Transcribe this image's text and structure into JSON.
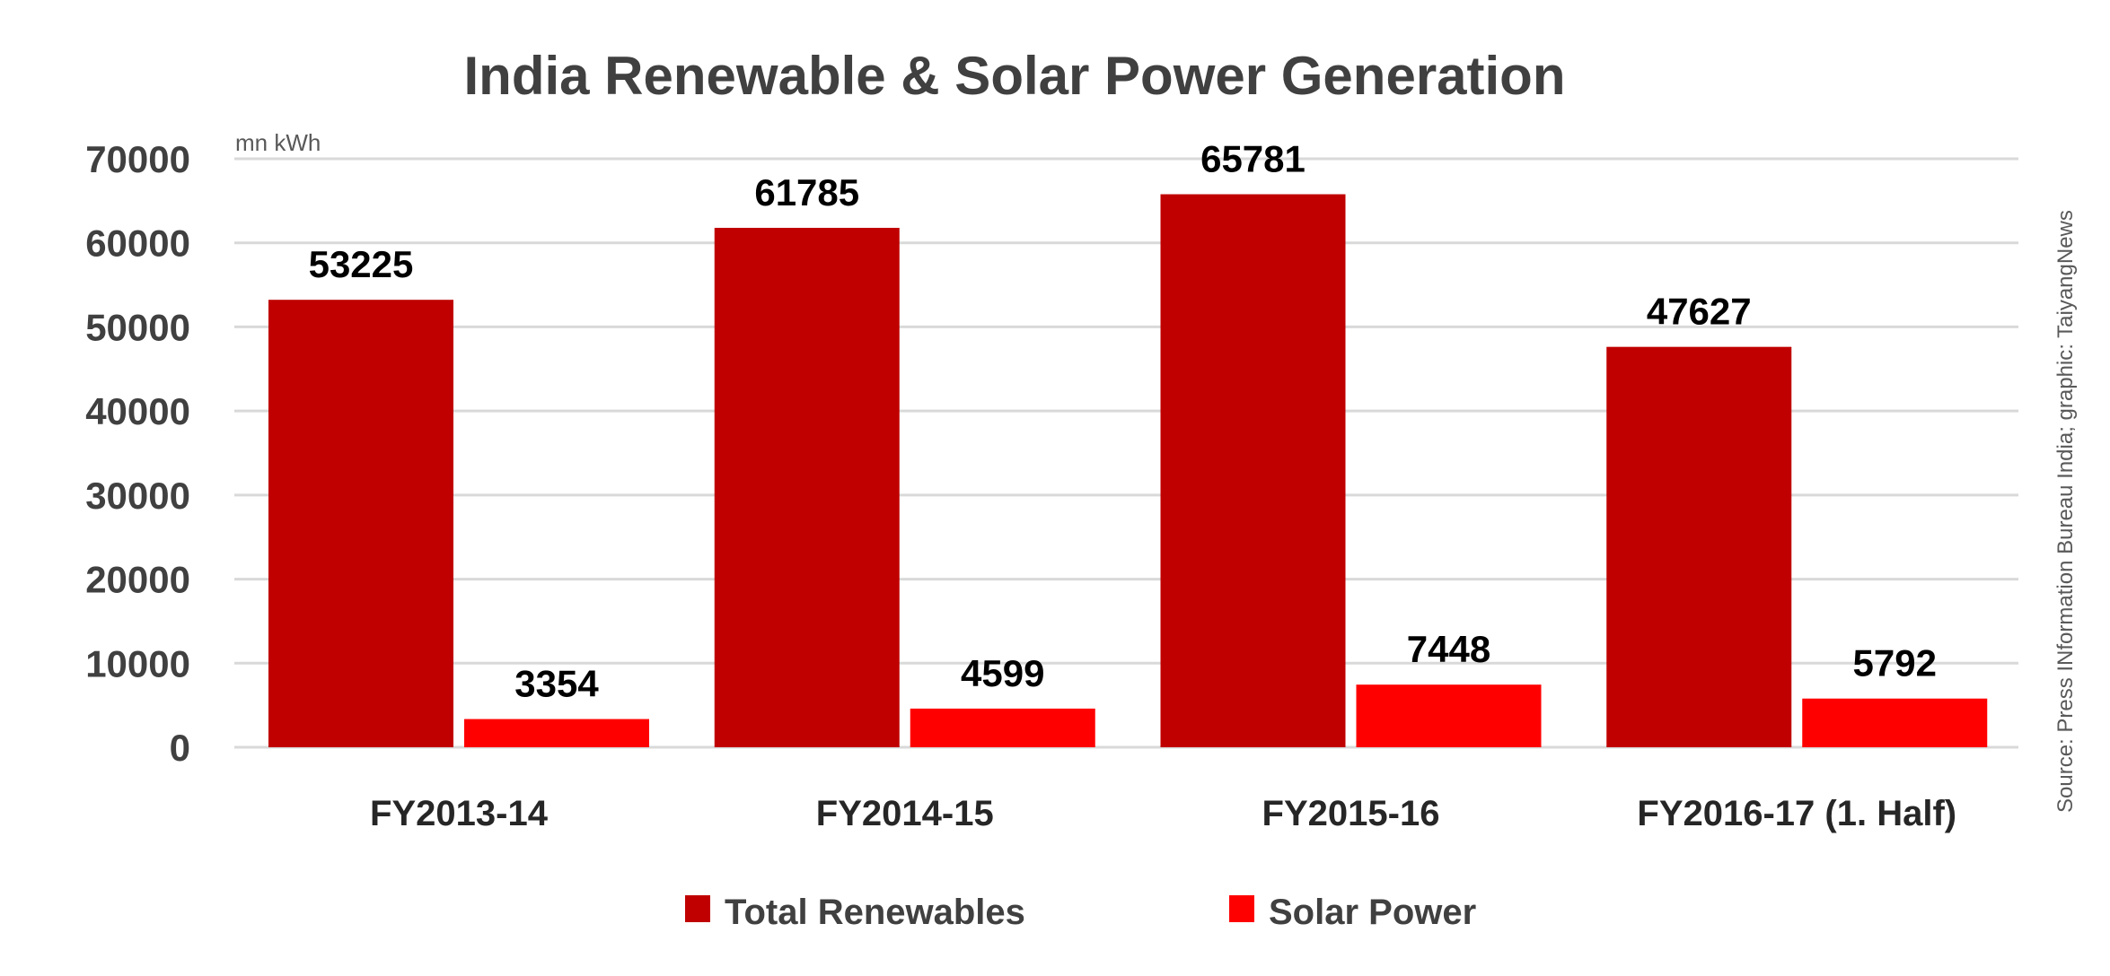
{
  "chart_data": {
    "type": "bar",
    "title": "India Renewable & Solar Power Generation",
    "ylabel": "mn kWh",
    "xlabel": "",
    "categories": [
      "FY2013-14",
      "FY2014-15",
      "FY2015-16",
      "FY2016-17 (1. Half)"
    ],
    "series": [
      {
        "name": "Total Renewables",
        "color": "#c00000",
        "values": [
          53225,
          61785,
          65781,
          47627
        ]
      },
      {
        "name": "Solar Power",
        "color": "#ff0000",
        "values": [
          3354,
          4599,
          7448,
          5792
        ]
      }
    ],
    "ylim": [
      0,
      70000
    ],
    "yticks": [
      "0",
      "10000",
      "20000",
      "30000",
      "40000",
      "50000",
      "60000",
      "70000"
    ],
    "grid": true,
    "legend_position": "bottom",
    "source": "Source: Press INformation Bureau India; graphic: TaiyangNews"
  }
}
